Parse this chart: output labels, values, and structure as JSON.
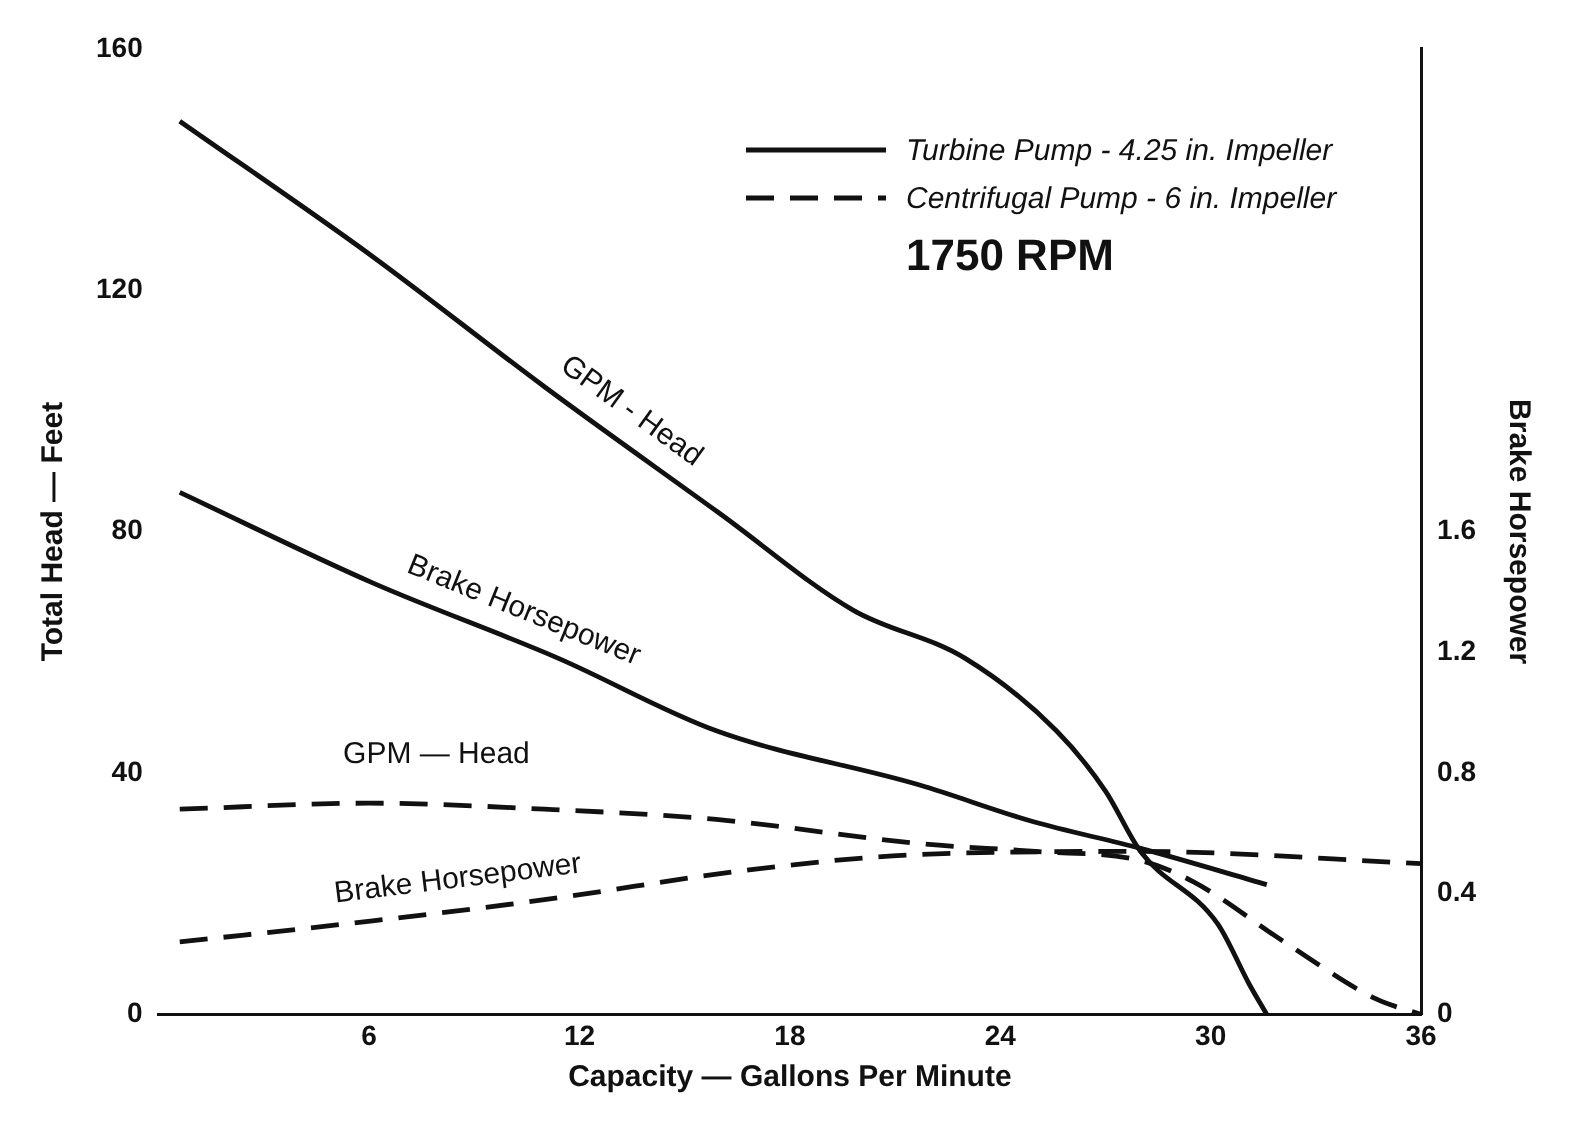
{
  "chart_data": {
    "type": "line",
    "xlabel": "Capacity — Gallons Per Minute",
    "ylabel": "Total Head — Feet",
    "y2label": "Brake Horsepower",
    "annotations": [
      "Turbine Pump - 4.25 in. Impeller",
      "Centrifugal Pump - 6 in. Impeller",
      "1750 RPM"
    ],
    "series": [
      {
        "name": "GPM - Head",
        "color": "#111111",
        "line_style": "solid",
        "x": [
          0.6,
          6,
          11,
          16,
          19.8,
          23,
          25.6,
          27,
          28,
          30.2,
          31.1,
          31.6
        ],
        "values": [
          148,
          126,
          104,
          83,
          67,
          59,
          47,
          37,
          27,
          15,
          5,
          0
        ]
      },
      {
        "name": "Brake Horsepower",
        "color": "#111111",
        "line_style": "solid",
        "axis": "y2",
        "x": [
          0.6,
          6.1,
          11.4,
          15.9,
          21.7,
          24.9,
          28,
          31.6
        ],
        "values": [
          1.73,
          1.43,
          1.18,
          0.94,
          0.76,
          0.64,
          0.55,
          0.43
        ]
      },
      {
        "name": "GPM — Head",
        "color": "#111111",
        "line_style": "dashed",
        "x": [
          0.6,
          6,
          11,
          15.9,
          21.7,
          25,
          28,
          29.5,
          32.1,
          34.7,
          36
        ],
        "values": [
          34,
          35,
          34,
          32.3,
          28.3,
          27,
          25.5,
          22,
          12,
          2.6,
          0
        ]
      },
      {
        "name": "Brake Horsepower",
        "color": "#111111",
        "line_style": "dashed",
        "axis": "y2",
        "x": [
          0.6,
          6.1,
          11,
          16.9,
          21.7,
          28,
          36
        ],
        "values": [
          0.24,
          0.31,
          0.38,
          0.48,
          0.53,
          0.54,
          0.5
        ]
      }
    ],
    "xlim": [
      0,
      36
    ],
    "xticks": [
      6,
      12,
      18,
      24,
      30,
      36
    ],
    "ylim": [
      0,
      160
    ],
    "yticks": [
      0,
      40,
      80,
      120,
      160
    ],
    "y2lim": [
      0,
      3.2
    ],
    "y2ticks": [
      0,
      0.4,
      0.8,
      1.2,
      1.6
    ],
    "grid": false,
    "legend": false,
    "marker": "none"
  }
}
